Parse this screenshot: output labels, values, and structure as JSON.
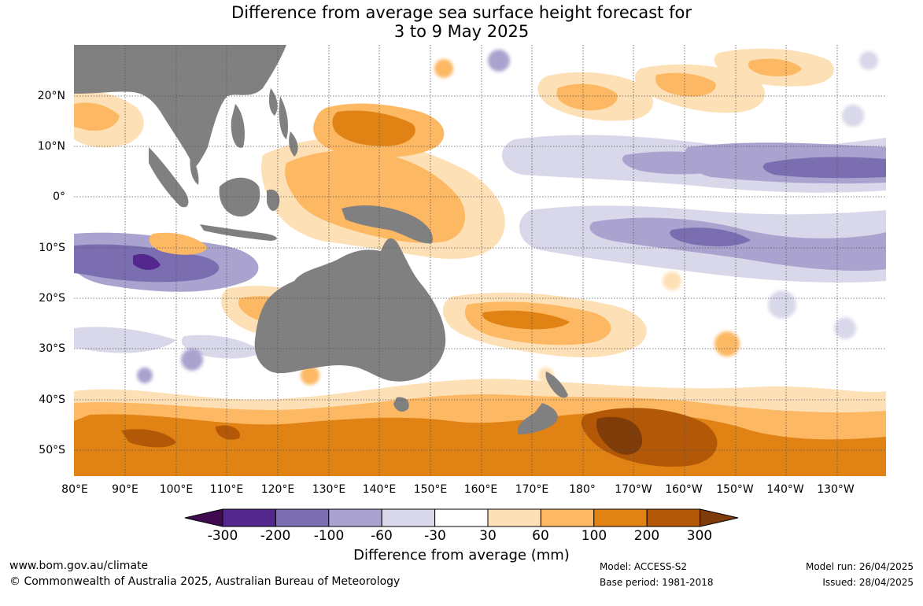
{
  "title": {
    "line1": "Difference from average sea surface height forecast for",
    "line2": "3 to 9 May 2025"
  },
  "map": {
    "latitude_labels": [
      "20°N",
      "10°N",
      "0°",
      "10°S",
      "20°S",
      "30°S",
      "40°S",
      "50°S"
    ],
    "longitude_labels": [
      "80°E",
      "90°E",
      "100°E",
      "110°E",
      "120°E",
      "130°E",
      "140°E",
      "150°E",
      "160°E",
      "170°E",
      "180°",
      "170°W",
      "160°W",
      "150°W",
      "140°W",
      "130°W"
    ],
    "land_color": "#808080",
    "gridline_style": "dotted"
  },
  "colorbar": {
    "title": "Difference from average (mm)",
    "ticks": [
      "-300",
      "-200",
      "-100",
      "-60",
      "-30",
      "30",
      "60",
      "100",
      "200",
      "300"
    ],
    "colors": [
      "#3f0a4f",
      "#54278f",
      "#7b6eb0",
      "#aaa3cf",
      "#d8d8ea",
      "#ffffff",
      "#fee0b6",
      "#fdb863",
      "#e08214",
      "#b35806",
      "#7f3b08"
    ]
  },
  "footer": {
    "website": "www.bom.gov.au/climate",
    "copyright": "© Commonwealth of Australia 2025, Australian Bureau of Meteorology",
    "model": "Model: ACCESS-S2",
    "base_period": "Base period: 1981-2018",
    "model_run": "Model run: 26/04/2025",
    "issued": "Issued: 28/04/2025"
  }
}
